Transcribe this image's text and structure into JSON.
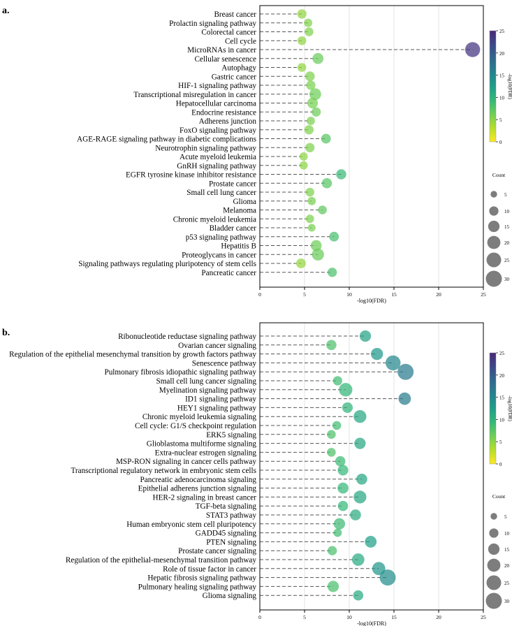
{
  "panels": [
    {
      "chart_data": {
        "type": "scatter",
        "panel_label": "a.",
        "xlabel": "-log10(FDR)",
        "xlim": [
          0,
          25
        ],
        "xticks": [
          0,
          5,
          10,
          15,
          20,
          25
        ],
        "grid": "vertical",
        "colorbar": {
          "label": "-log10(FDR)",
          "range": [
            0,
            25
          ],
          "ticks": [
            0,
            5,
            10,
            15,
            20,
            25
          ],
          "colormap": "viridis-reversed"
        },
        "size_legend": {
          "title": "Count",
          "values": [
            5,
            10,
            15,
            20,
            25,
            30
          ]
        },
        "terms": [
          {
            "name": "Breast cancer",
            "fdr": 4.7,
            "count": 10
          },
          {
            "name": "Prolactin signaling pathway",
            "fdr": 5.4,
            "count": 8
          },
          {
            "name": "Colorectal cancer",
            "fdr": 5.5,
            "count": 9
          },
          {
            "name": "Cell cycle",
            "fdr": 4.7,
            "count": 9
          },
          {
            "name": "MicroRNAs in cancer",
            "fdr": 23.8,
            "count": 26
          },
          {
            "name": "Cellular senescence",
            "fdr": 6.5,
            "count": 14
          },
          {
            "name": "Autophagy",
            "fdr": 4.7,
            "count": 9
          },
          {
            "name": "Gastric cancer",
            "fdr": 5.6,
            "count": 11
          },
          {
            "name": "HIF-1 signaling pathway",
            "fdr": 5.7,
            "count": 10
          },
          {
            "name": "Transcriptional misregulation in cancer",
            "fdr": 6.2,
            "count": 16
          },
          {
            "name": "Hepatocellular carcinoma",
            "fdr": 5.9,
            "count": 13
          },
          {
            "name": "Endocrine resistance",
            "fdr": 6.3,
            "count": 10
          },
          {
            "name": "Adherens junction",
            "fdr": 5.7,
            "count": 8
          },
          {
            "name": "FoxO signaling pathway",
            "fdr": 5.5,
            "count": 10
          },
          {
            "name": "AGE-RAGE signaling pathway in diabetic complications",
            "fdr": 7.4,
            "count": 11
          },
          {
            "name": "Neurotrophin signaling pathway",
            "fdr": 5.6,
            "count": 10
          },
          {
            "name": "Acute myeloid leukemia",
            "fdr": 4.9,
            "count": 8
          },
          {
            "name": "GnRH signaling pathway",
            "fdr": 4.9,
            "count": 8
          },
          {
            "name": "EGFR tyrosine kinase inhibitor resistance",
            "fdr": 9.1,
            "count": 12
          },
          {
            "name": "Prostate cancer",
            "fdr": 7.5,
            "count": 12
          },
          {
            "name": "Small cell lung cancer",
            "fdr": 5.6,
            "count": 9
          },
          {
            "name": "Glioma",
            "fdr": 5.8,
            "count": 8
          },
          {
            "name": "Melanoma",
            "fdr": 7.0,
            "count": 9
          },
          {
            "name": "Chronic myeloid leukemia",
            "fdr": 5.6,
            "count": 8
          },
          {
            "name": "Bladder cancer",
            "fdr": 5.8,
            "count": 7
          },
          {
            "name": "p53 signaling pathway",
            "fdr": 8.3,
            "count": 11
          },
          {
            "name": "Hepatitis B",
            "fdr": 6.3,
            "count": 14
          },
          {
            "name": "Proteoglycans in cancer",
            "fdr": 6.5,
            "count": 17
          },
          {
            "name": "Signaling pathways regulating pluripotency of stem cells",
            "fdr": 4.6,
            "count": 11
          },
          {
            "name": "Pancreatic cancer",
            "fdr": 8.1,
            "count": 10
          }
        ]
      }
    },
    {
      "chart_data": {
        "type": "scatter",
        "panel_label": "b.",
        "xlabel": "-log10(FDR)",
        "xlim": [
          0,
          25
        ],
        "xticks": [
          0,
          5,
          10,
          15,
          20,
          25
        ],
        "grid": "vertical",
        "colorbar": {
          "label": "-log10(FDR)",
          "range": [
            0,
            25
          ],
          "ticks": [
            0,
            5,
            10,
            15,
            20,
            25
          ],
          "colormap": "viridis-reversed"
        },
        "size_legend": {
          "title": "Count",
          "values": [
            5,
            10,
            15,
            20,
            25,
            30
          ]
        },
        "terms": [
          {
            "name": "Ribonucleotide reductase signaling pathway",
            "fdr": 11.8,
            "count": 15
          },
          {
            "name": "Ovarian cancer signaling",
            "fdr": 8.0,
            "count": 12
          },
          {
            "name": "Regulation of the epithelial mesenchymal transition by growth factors pathway",
            "fdr": 13.1,
            "count": 17
          },
          {
            "name": "Senescence pathway",
            "fdr": 14.9,
            "count": 26
          },
          {
            "name": "Pulmonary fibrosis idiopathic signaling pathway",
            "fdr": 16.3,
            "count": 30
          },
          {
            "name": "Small cell lung cancer signaling",
            "fdr": 8.7,
            "count": 10
          },
          {
            "name": "Myelination signaling pathway",
            "fdr": 9.6,
            "count": 21
          },
          {
            "name": "ID1 signaling pathway",
            "fdr": 16.2,
            "count": 18
          },
          {
            "name": "HEY1 signaling pathway",
            "fdr": 9.8,
            "count": 13
          },
          {
            "name": "Chronic myeloid leukemia signaling",
            "fdr": 11.2,
            "count": 19
          },
          {
            "name": "Cell cycle: G1/S checkpoint regulation",
            "fdr": 8.6,
            "count": 9
          },
          {
            "name": "ERK5 signaling",
            "fdr": 8.0,
            "count": 9
          },
          {
            "name": "Glioblastoma multiforme signaling",
            "fdr": 11.2,
            "count": 15
          },
          {
            "name": "Extra-nuclear estrogen signaling",
            "fdr": 8.0,
            "count": 9
          },
          {
            "name": "MSP-RON signaling in cancer cells pathway",
            "fdr": 9.0,
            "count": 12
          },
          {
            "name": "Transcriptional regulatory network in embryonic stem cells",
            "fdr": 9.3,
            "count": 13
          },
          {
            "name": "Pancreatic adenocarcinoma signaling",
            "fdr": 11.4,
            "count": 14
          },
          {
            "name": "Epithelial adherens junction signaling",
            "fdr": 9.3,
            "count": 14
          },
          {
            "name": "HER-2 signaling in breast cancer",
            "fdr": 11.2,
            "count": 19
          },
          {
            "name": "TGF-beta signaling",
            "fdr": 9.3,
            "count": 12
          },
          {
            "name": "STAT3 pathway",
            "fdr": 10.7,
            "count": 14
          },
          {
            "name": "Human embryonic stem cell pluripotency",
            "fdr": 8.9,
            "count": 15
          },
          {
            "name": "GADD45 signaling",
            "fdr": 8.7,
            "count": 8
          },
          {
            "name": "PTEN signaling",
            "fdr": 12.4,
            "count": 16
          },
          {
            "name": "Prostate cancer signaling",
            "fdr": 8.1,
            "count": 10
          },
          {
            "name": "Regulation of the epithelial-mesenchymal transition pathway",
            "fdr": 11.0,
            "count": 18
          },
          {
            "name": "Role of tissue factor in cancer",
            "fdr": 13.3,
            "count": 20
          },
          {
            "name": "Hepatic fibrosis signaling pathway",
            "fdr": 14.3,
            "count": 30
          },
          {
            "name": "Pulmonary healing signaling pathway",
            "fdr": 8.2,
            "count": 15
          },
          {
            "name": "Glioma signaling",
            "fdr": 11.0,
            "count": 12
          }
        ]
      }
    }
  ]
}
